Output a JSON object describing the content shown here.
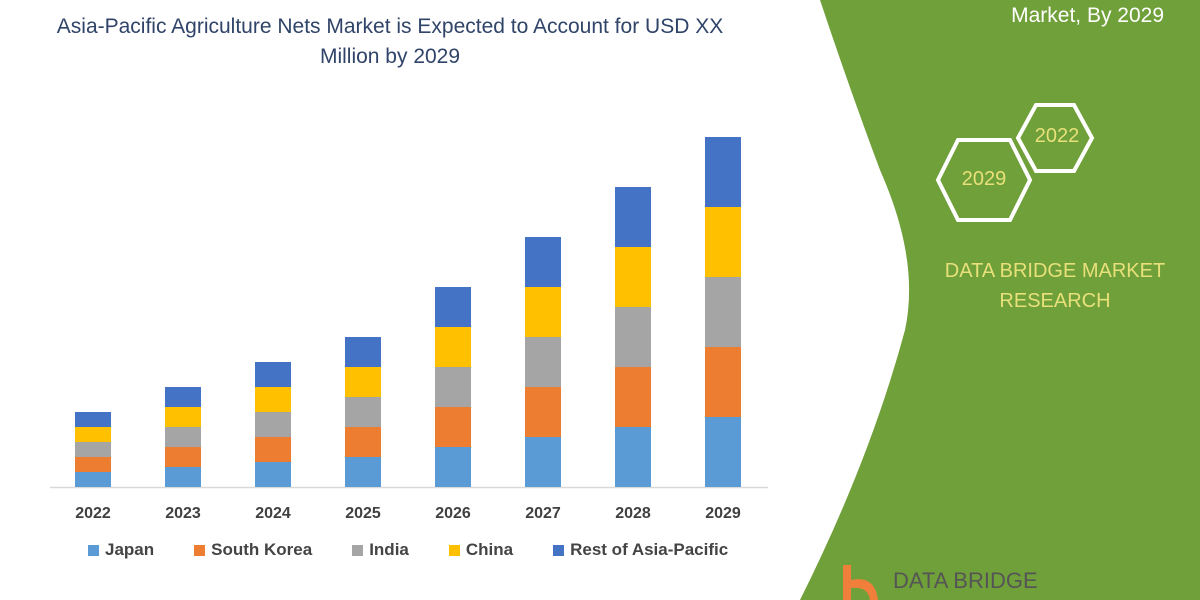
{
  "header": {
    "title": "Asia-Pacific Agriculture Nets Market is Expected to Account for USD XX Million by 2029",
    "side_title": "Market, By 2029"
  },
  "side_panel": {
    "hex_years": [
      "2022",
      "2029"
    ],
    "brand": "DATA BRIDGE MARKET RESEARCH",
    "logo_text": "DATA BRIDGE",
    "panel_color": "#70a03a",
    "text_color": "#e8e07a"
  },
  "chart_data": {
    "type": "bar",
    "stacked": true,
    "title": "Asia-Pacific Agriculture Nets Market is Expected to Account for USD XX Million by 2029",
    "xlabel": "",
    "ylabel": "",
    "y_axis_shown": false,
    "grid": false,
    "legend_position": "bottom",
    "categories": [
      "2022",
      "2023",
      "2024",
      "2025",
      "2026",
      "2027",
      "2028",
      "2029"
    ],
    "ylim": [
      0,
      350
    ],
    "series": [
      {
        "name": "Japan",
        "color": "#5b9bd5",
        "values": [
          15,
          20,
          25,
          30,
          40,
          50,
          60,
          70
        ]
      },
      {
        "name": "South Korea",
        "color": "#ed7d31",
        "values": [
          15,
          20,
          25,
          30,
          40,
          50,
          60,
          70
        ]
      },
      {
        "name": "India",
        "color": "#a5a5a5",
        "values": [
          15,
          20,
          25,
          30,
          40,
          50,
          60,
          70
        ]
      },
      {
        "name": "China",
        "color": "#ffc000",
        "values": [
          15,
          20,
          25,
          30,
          40,
          50,
          60,
          70
        ]
      },
      {
        "name": "Rest of Asia-Pacific",
        "color": "#4472c4",
        "values": [
          15,
          20,
          25,
          30,
          40,
          50,
          60,
          70
        ]
      }
    ]
  }
}
